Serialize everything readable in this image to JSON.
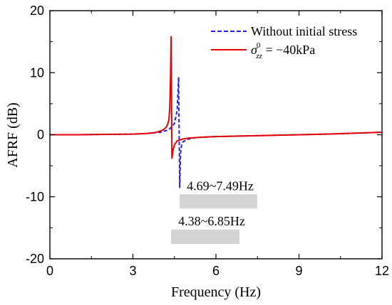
{
  "chart_data": {
    "type": "line",
    "title": "",
    "xlabel": "Frequency (Hz)",
    "ylabel": "AFRF (dB)",
    "xlim": [
      0,
      12
    ],
    "ylim": [
      -20,
      20
    ],
    "xticks": [
      0,
      3,
      6,
      9,
      12
    ],
    "yticks": [
      -20,
      -10,
      0,
      10,
      20
    ],
    "xtick_labels": [
      "0",
      "3",
      "6",
      "9",
      "12"
    ],
    "ytick_labels": [
      "-20",
      "-10",
      "0",
      "10",
      "20"
    ],
    "grid": false,
    "legend_position": "top-right",
    "series": [
      {
        "name": "Without initial stress",
        "color": "#1f1fe6",
        "style": "dashed",
        "x": [
          0,
          1,
          2,
          3,
          3.5,
          4,
          4.3,
          4.5,
          4.6,
          4.65,
          4.69,
          4.72,
          4.76,
          4.8,
          4.9,
          5.0,
          5.3,
          6,
          7,
          8,
          9,
          10,
          11,
          12
        ],
        "y": [
          0,
          0,
          0.05,
          0.1,
          0.2,
          0.4,
          0.8,
          1.8,
          4.0,
          9.3,
          -8.5,
          -3.0,
          -1.6,
          -1.2,
          -0.9,
          -0.7,
          -0.45,
          -0.3,
          -0.2,
          -0.1,
          0,
          0.1,
          0.25,
          0.4
        ]
      },
      {
        "name": "σ⁰zz = −40kPa",
        "color": "#e60000",
        "style": "solid",
        "x": [
          0,
          1,
          2,
          3,
          3.5,
          3.8,
          4.0,
          4.1,
          4.2,
          4.25,
          4.3,
          4.33,
          4.36,
          4.38,
          4.41,
          4.45,
          4.5,
          4.6,
          4.8,
          5.0,
          5.5,
          6,
          7,
          8,
          9,
          10,
          11,
          12
        ],
        "y": [
          0,
          0,
          0.05,
          0.1,
          0.2,
          0.35,
          0.6,
          0.8,
          1.2,
          1.6,
          2.4,
          4.2,
          9.5,
          15.8,
          -3.8,
          -2.5,
          -1.6,
          -1.0,
          -0.7,
          -0.55,
          -0.4,
          -0.3,
          -0.2,
          -0.1,
          0,
          0.1,
          0.25,
          0.4
        ]
      }
    ],
    "legend": {
      "entry1": "Without initial stress",
      "entry2_symbol": "σ",
      "entry2_sup": "0",
      "entry2_sub": "zz",
      "entry2_rest": " = −40kPa"
    },
    "annotations": [
      {
        "label": "4.69~7.49Hz",
        "x_start": 4.69,
        "x_end": 7.49,
        "y_top": -9.6,
        "y_bottom": -11.9,
        "color": "#d3d3d3"
      },
      {
        "label": "4.38~6.85Hz",
        "x_start": 4.38,
        "x_end": 6.85,
        "y_top": -15.3,
        "y_bottom": -17.6,
        "color": "#d3d3d3"
      }
    ]
  }
}
